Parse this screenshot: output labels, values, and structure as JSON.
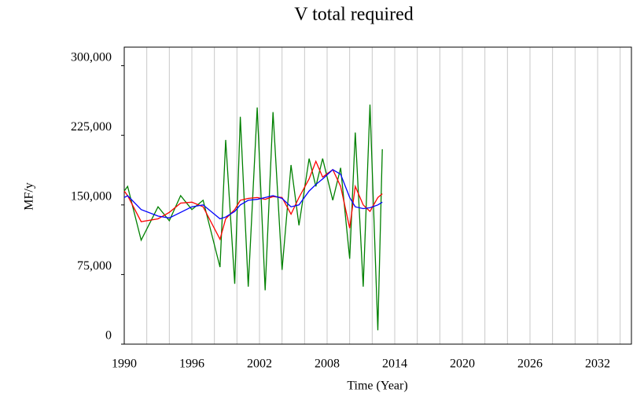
{
  "chart_data": {
    "type": "line",
    "title": "V total required",
    "x_label": "Time (Year)",
    "y_label": "MF/y",
    "x": [
      1990,
      1990.3,
      1991.5,
      1993,
      1994,
      1995,
      1996,
      1997,
      1998.5,
      1999,
      1999.8,
      2000.3,
      2001,
      2001.8,
      2002.5,
      2003.2,
      2004,
      2004.8,
      2005.5,
      2006.4,
      2007,
      2007.6,
      2008.5,
      2009.2,
      2010,
      2010.5,
      2011.2,
      2011.8,
      2012.5,
      2012.9
    ],
    "series": [
      {
        "color": "#008000",
        "values": [
          165000,
          170000,
          112000,
          148000,
          133000,
          160000,
          145000,
          155000,
          83000,
          220000,
          65000,
          245000,
          62000,
          255000,
          58000,
          250000,
          80000,
          193000,
          128000,
          200000,
          170000,
          200000,
          155000,
          190000,
          92000,
          228000,
          62000,
          258000,
          15000,
          210000
        ]
      },
      {
        "color": "#ff0000",
        "values": [
          165000,
          160000,
          132000,
          135000,
          142000,
          152000,
          153000,
          148000,
          113000,
          135000,
          145000,
          155000,
          157000,
          158000,
          156000,
          159000,
          158000,
          140000,
          158000,
          178000,
          197000,
          180000,
          188000,
          170000,
          125000,
          170000,
          150000,
          143000,
          158000,
          162000
        ]
      },
      {
        "color": "#0000ff",
        "values": [
          158000,
          160000,
          145000,
          138000,
          136000,
          142000,
          148000,
          150000,
          135000,
          137000,
          143000,
          150000,
          155000,
          156000,
          158000,
          160000,
          157000,
          148000,
          150000,
          165000,
          172000,
          178000,
          188000,
          183000,
          158000,
          148000,
          146000,
          147000,
          150000,
          153000
        ]
      }
    ],
    "xlim": [
      1990,
      2035
    ],
    "xticks": [
      1990,
      1996,
      2002,
      2008,
      2014,
      2020,
      2026,
      2032
    ],
    "xgrid": [
      1990,
      1992,
      1994,
      1996,
      1998,
      2000,
      2002,
      2004,
      2006,
      2008,
      2010,
      2012,
      2014,
      2016,
      2018,
      2020,
      2022,
      2024,
      2026,
      2028,
      2030,
      2032,
      2034
    ],
    "ylim": [
      0,
      320000
    ],
    "yticks": [
      0,
      {
        "value": 75000,
        "label": "75,000"
      },
      {
        "value": 150000,
        "label": "150,000"
      },
      {
        "value": 225000,
        "label": "225,000"
      },
      {
        "value": 300000,
        "label": "300,000"
      }
    ]
  }
}
